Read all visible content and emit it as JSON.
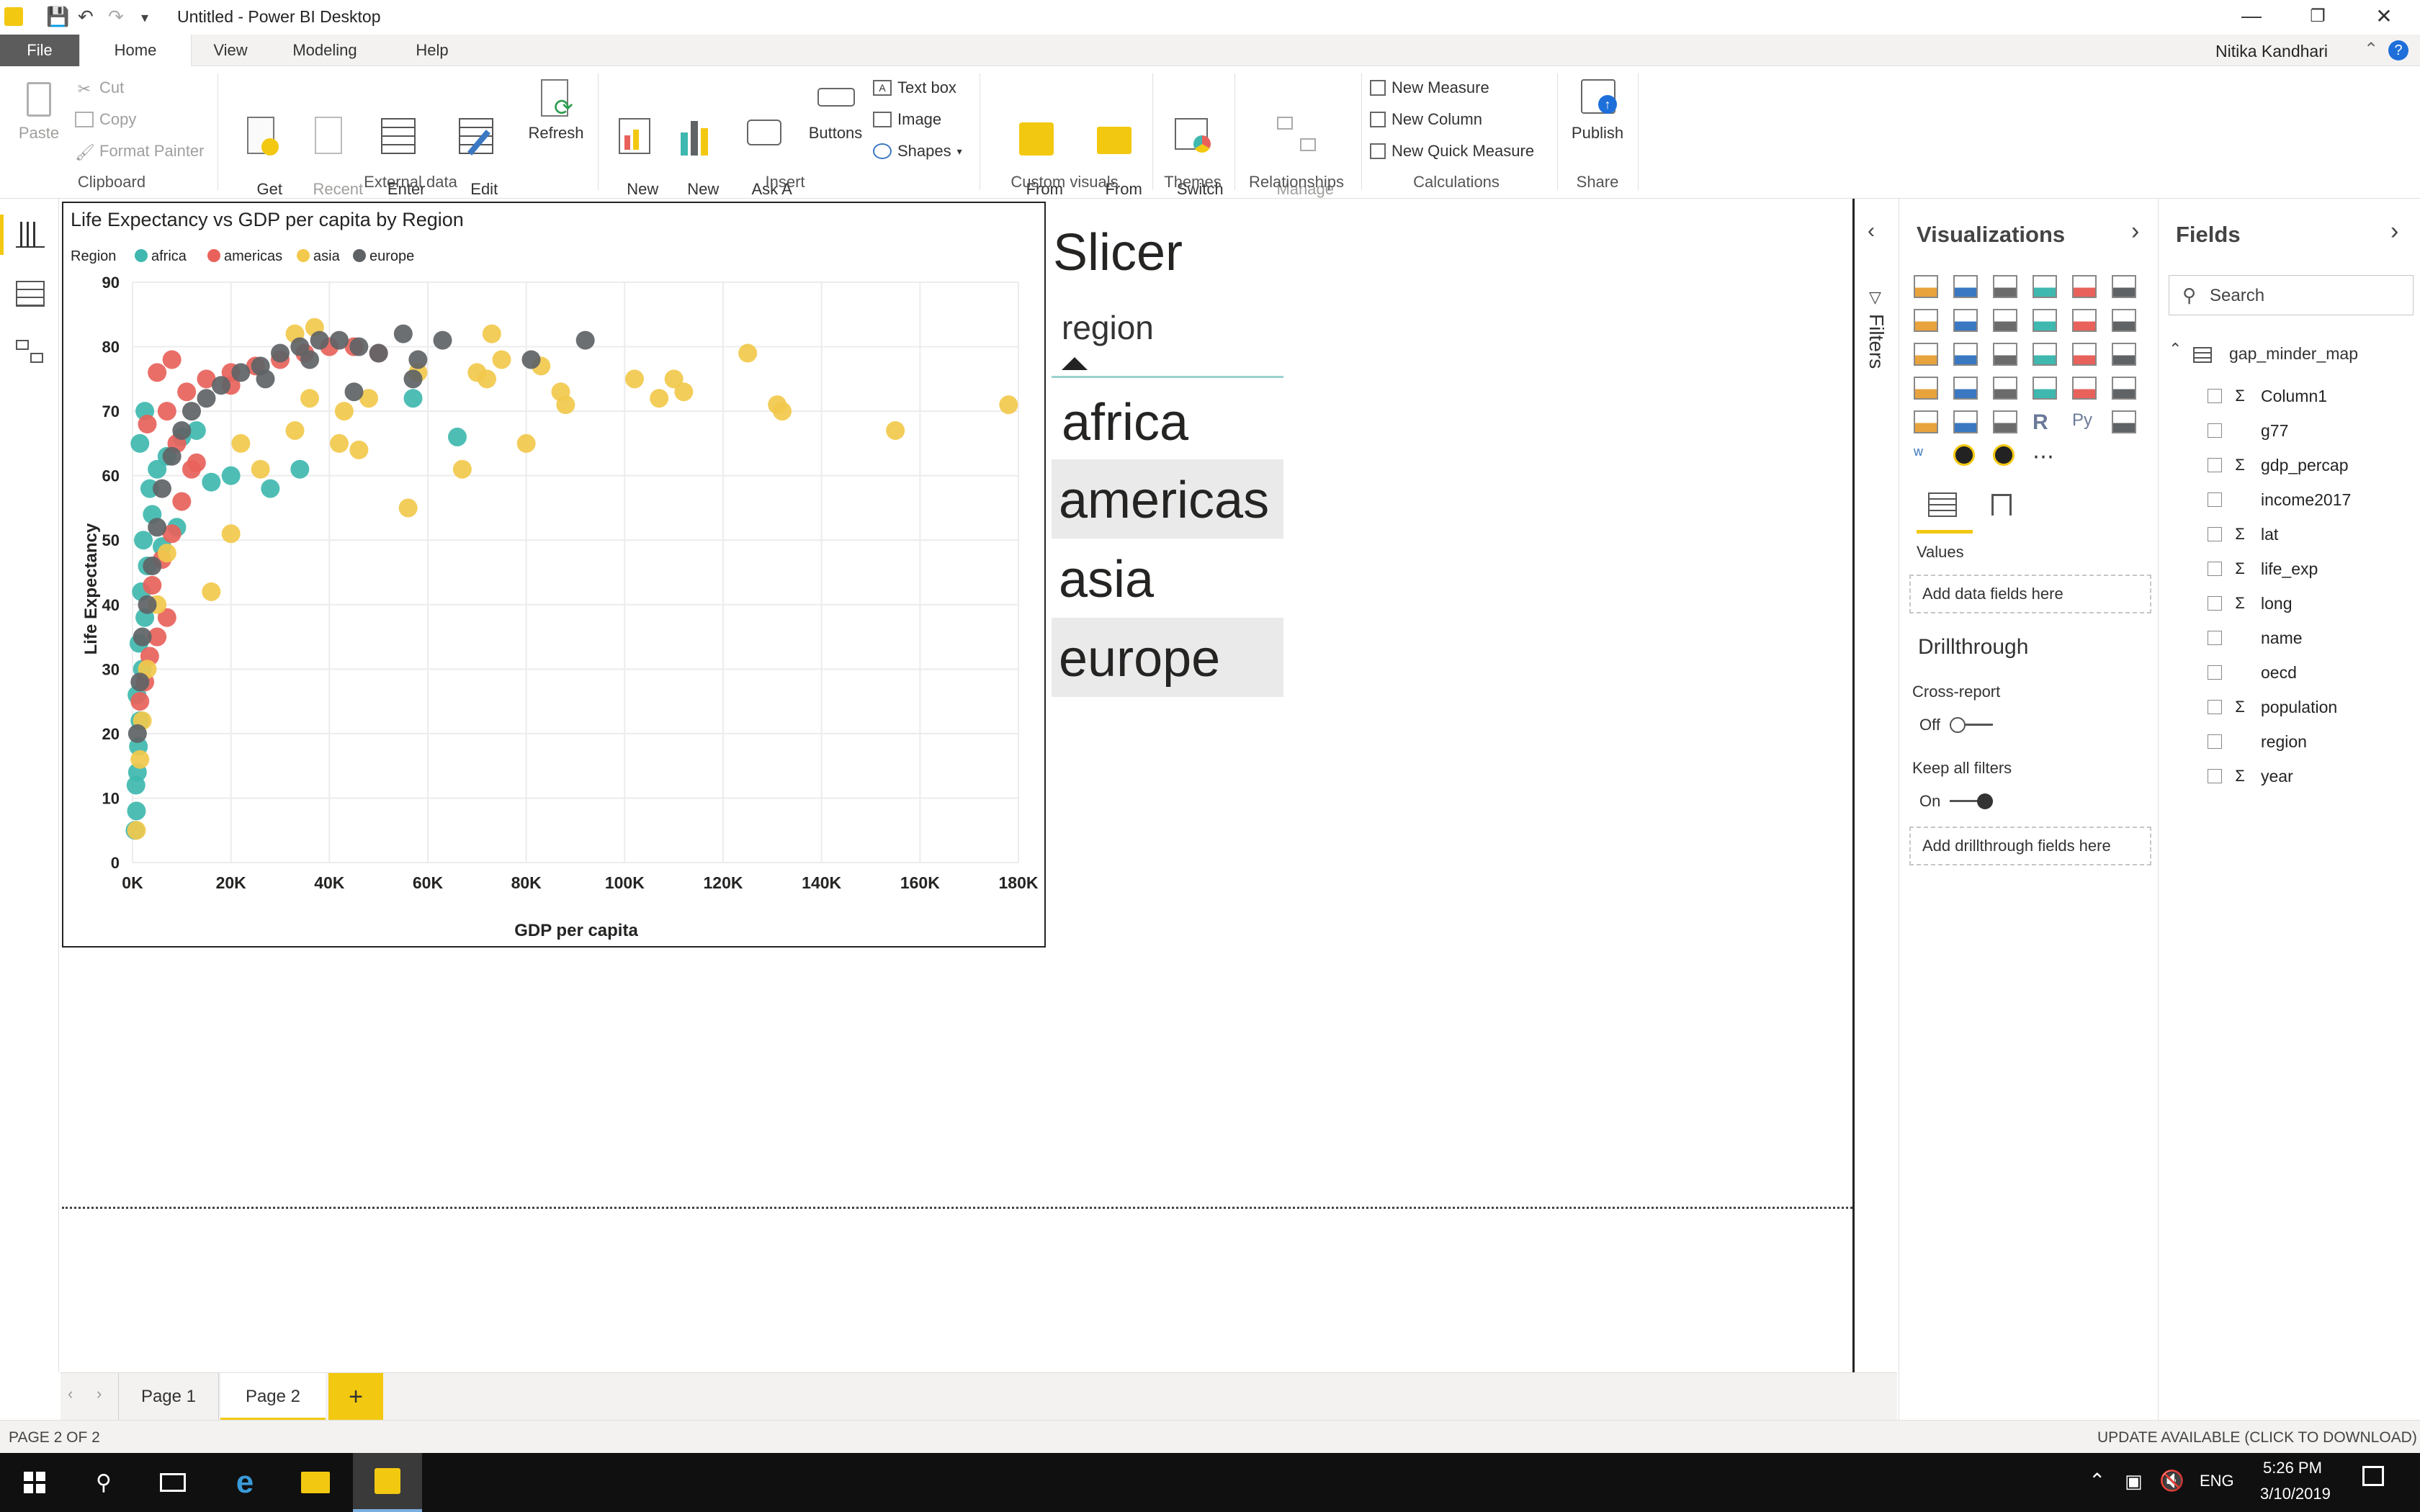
{
  "window": {
    "title": "Untitled - Power BI Desktop",
    "user": "Nitika Kandhari"
  },
  "tabs": [
    "File",
    "Home",
    "View",
    "Modeling",
    "Help"
  ],
  "ribbon": {
    "clipboard": {
      "paste": "Paste",
      "cut": "Cut",
      "copy": "Copy",
      "format_painter": "Format Painter",
      "group": "Clipboard"
    },
    "external": {
      "get_data": "Get\nData",
      "recent_sources": "Recent\nSources",
      "enter_data": "Enter\nData",
      "edit_queries": "Edit\nQueries",
      "refresh": "Refresh",
      "group": "External data"
    },
    "insert": {
      "new_page": "New\nPage",
      "new_visual": "New\nVisual",
      "ask_question": "Ask A\nQuestion",
      "buttons": "Buttons",
      "text_box": "Text box",
      "image": "Image",
      "shapes": "Shapes",
      "group": "Insert"
    },
    "custom_visuals": {
      "from_marketplace": "From\nMarketplace",
      "from_file": "From\nFile",
      "group": "Custom visuals"
    },
    "themes": {
      "switch_theme": "Switch\nTheme",
      "group": "Themes"
    },
    "relationships": {
      "manage": "Manage\nRelationships",
      "group": "Relationships"
    },
    "calculations": {
      "new_measure": "New Measure",
      "new_column": "New Column",
      "new_quick_measure": "New Quick Measure",
      "group": "Calculations"
    },
    "share": {
      "publish": "Publish",
      "group": "Share"
    }
  },
  "chart_data": {
    "type": "scatter",
    "title": "Life Expectancy vs GDP per capita by Region",
    "legend_title": "Region",
    "legend_position": "top-left",
    "xlabel": "GDP per capita",
    "ylabel": "Life Expectancy",
    "xlim": [
      0,
      180000
    ],
    "ylim": [
      0,
      90
    ],
    "x_ticks": [
      "0K",
      "20K",
      "40K",
      "60K",
      "80K",
      "100K",
      "120K",
      "140K",
      "160K",
      "180K"
    ],
    "y_ticks": [
      "0",
      "10",
      "20",
      "30",
      "40",
      "50",
      "60",
      "70",
      "80",
      "90"
    ],
    "grid": true,
    "series": [
      {
        "name": "africa",
        "color": "#3fb8af",
        "points": [
          [
            500,
            5
          ],
          [
            800,
            8
          ],
          [
            700,
            12
          ],
          [
            1000,
            14
          ],
          [
            1200,
            18
          ],
          [
            1500,
            22
          ],
          [
            900,
            26
          ],
          [
            2000,
            30
          ],
          [
            1300,
            34
          ],
          [
            2500,
            38
          ],
          [
            1800,
            42
          ],
          [
            3000,
            46
          ],
          [
            2200,
            50
          ],
          [
            4000,
            54
          ],
          [
            3500,
            58
          ],
          [
            5000,
            61
          ],
          [
            7000,
            63
          ],
          [
            10000,
            66
          ],
          [
            13000,
            67
          ],
          [
            16000,
            59
          ],
          [
            20000,
            60
          ],
          [
            28000,
            58
          ],
          [
            34000,
            61
          ],
          [
            66000,
            66
          ],
          [
            57000,
            72
          ],
          [
            2500,
            70
          ],
          [
            1500,
            65
          ],
          [
            6000,
            49
          ],
          [
            9000,
            52
          ]
        ]
      },
      {
        "name": "americas",
        "color": "#e8625b",
        "points": [
          [
            1500,
            25
          ],
          [
            2500,
            28
          ],
          [
            3500,
            32
          ],
          [
            5000,
            35
          ],
          [
            7000,
            38
          ],
          [
            4000,
            43
          ],
          [
            6000,
            47
          ],
          [
            8000,
            51
          ],
          [
            10000,
            56
          ],
          [
            12000,
            61
          ],
          [
            9000,
            65
          ],
          [
            7000,
            70
          ],
          [
            11000,
            73
          ],
          [
            15000,
            75
          ],
          [
            20000,
            76
          ],
          [
            25000,
            77
          ],
          [
            30000,
            78
          ],
          [
            35000,
            79
          ],
          [
            40000,
            80
          ],
          [
            45000,
            80
          ],
          [
            50000,
            79
          ],
          [
            5000,
            76
          ],
          [
            8000,
            78
          ],
          [
            3000,
            68
          ],
          [
            13000,
            62
          ],
          [
            20000,
            74
          ]
        ]
      },
      {
        "name": "asia",
        "color": "#f2c94c",
        "points": [
          [
            800,
            5
          ],
          [
            1500,
            16
          ],
          [
            2000,
            22
          ],
          [
            3000,
            30
          ],
          [
            5000,
            40
          ],
          [
            7000,
            48
          ],
          [
            16000,
            42
          ],
          [
            20000,
            51
          ],
          [
            22000,
            65
          ],
          [
            26000,
            61
          ],
          [
            33000,
            67
          ],
          [
            42000,
            65
          ],
          [
            46000,
            64
          ],
          [
            36000,
            72
          ],
          [
            43000,
            70
          ],
          [
            48000,
            72
          ],
          [
            56000,
            55
          ],
          [
            58000,
            76
          ],
          [
            67000,
            61
          ],
          [
            70000,
            76
          ],
          [
            72000,
            75
          ],
          [
            75000,
            78
          ],
          [
            80000,
            65
          ],
          [
            83000,
            77
          ],
          [
            87000,
            73
          ],
          [
            88000,
            71
          ],
          [
            102000,
            75
          ],
          [
            107000,
            72
          ],
          [
            110000,
            75
          ],
          [
            112000,
            73
          ],
          [
            125000,
            79
          ],
          [
            131000,
            71
          ],
          [
            132000,
            70
          ],
          [
            155000,
            67
          ],
          [
            178000,
            71
          ],
          [
            73000,
            82
          ],
          [
            33000,
            82
          ],
          [
            37000,
            83
          ]
        ]
      },
      {
        "name": "europe",
        "color": "#5f6366",
        "points": [
          [
            1000,
            20
          ],
          [
            1500,
            28
          ],
          [
            2000,
            35
          ],
          [
            3000,
            40
          ],
          [
            4000,
            46
          ],
          [
            5000,
            52
          ],
          [
            6000,
            58
          ],
          [
            8000,
            63
          ],
          [
            10000,
            67
          ],
          [
            12000,
            70
          ],
          [
            15000,
            72
          ],
          [
            18000,
            74
          ],
          [
            22000,
            76
          ],
          [
            26000,
            77
          ],
          [
            30000,
            79
          ],
          [
            34000,
            80
          ],
          [
            38000,
            81
          ],
          [
            42000,
            81
          ],
          [
            46000,
            80
          ],
          [
            50000,
            79
          ],
          [
            55000,
            82
          ],
          [
            57000,
            75
          ],
          [
            58000,
            78
          ],
          [
            63000,
            81
          ],
          [
            81000,
            78
          ],
          [
            92000,
            81
          ],
          [
            45000,
            73
          ],
          [
            36000,
            78
          ],
          [
            27000,
            75
          ]
        ]
      }
    ]
  },
  "slicer": {
    "heading": "Slicer",
    "field": "region",
    "items": [
      "africa",
      "americas",
      "asia",
      "europe"
    ]
  },
  "filters_label": "Filters",
  "visualizations": {
    "title": "Visualizations",
    "values_label": "Values",
    "values_placeholder": "Add data fields here",
    "drillthrough": "Drillthrough",
    "cross_report": "Cross-report",
    "cross_report_state": "Off",
    "keep_filters": "Keep all filters",
    "keep_filters_state": "On",
    "drill_placeholder": "Add drillthrough fields here"
  },
  "fields": {
    "title": "Fields",
    "search_placeholder": "Search",
    "table": "gap_minder_map",
    "items": [
      {
        "name": "Column1",
        "sigma": true
      },
      {
        "name": "g77",
        "sigma": false
      },
      {
        "name": "gdp_percap",
        "sigma": true
      },
      {
        "name": "income2017",
        "sigma": false
      },
      {
        "name": "lat",
        "sigma": true
      },
      {
        "name": "life_exp",
        "sigma": true
      },
      {
        "name": "long",
        "sigma": true
      },
      {
        "name": "name",
        "sigma": false
      },
      {
        "name": "oecd",
        "sigma": false
      },
      {
        "name": "population",
        "sigma": true
      },
      {
        "name": "region",
        "sigma": false
      },
      {
        "name": "year",
        "sigma": true
      }
    ]
  },
  "pages": [
    "Page 1",
    "Page 2"
  ],
  "status": {
    "page": "PAGE 2 OF 2",
    "update": "UPDATE AVAILABLE (CLICK TO DOWNLOAD)"
  },
  "taskbar": {
    "lang": "ENG",
    "time": "5:26 PM",
    "date": "3/10/2019"
  }
}
